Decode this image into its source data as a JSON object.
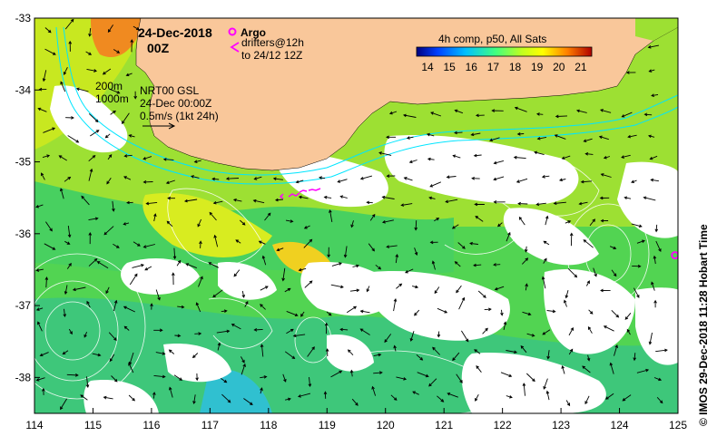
{
  "map": {
    "date_title": "24-Dec-2018",
    "time_title": "00Z",
    "argo_label": "Argo",
    "drifters_line1": "drifters@12h",
    "drifters_line2": "to 24/12 12Z",
    "depth_200": "200m",
    "depth_1000": "1000m",
    "nrt_line1": "NRT00 GSL",
    "nrt_line2": "24-Dec 00:00Z",
    "nrt_line3": "0.5m/s (1kt 24h)",
    "colorbar_title": "4h comp, p50, All Sats",
    "colorbar_ticks": [
      "14",
      "15",
      "16",
      "17",
      "18",
      "19",
      "20",
      "21"
    ],
    "colorbar_range": [
      13.5,
      21.5
    ],
    "credit": "© IMOS 29-Dec-2018 11:28 Hobart Time",
    "lon_range": [
      114,
      125
    ],
    "lat_range": [
      -38.5,
      -33
    ],
    "x_ticks": [
      "114",
      "115",
      "116",
      "117",
      "118",
      "119",
      "120",
      "121",
      "122",
      "123",
      "124",
      "125"
    ],
    "y_ticks": [
      "-33",
      "-34",
      "-35",
      "-36",
      "-37",
      "-38"
    ],
    "colors": {
      "land": "#f9c79a",
      "cloud": "#ffffff",
      "bathymetry": "#00e5ff",
      "argo": "#ff00ff",
      "contour": "#ffffff"
    },
    "argo_floats": [
      [
        124.95,
        -36.3
      ]
    ]
  }
}
